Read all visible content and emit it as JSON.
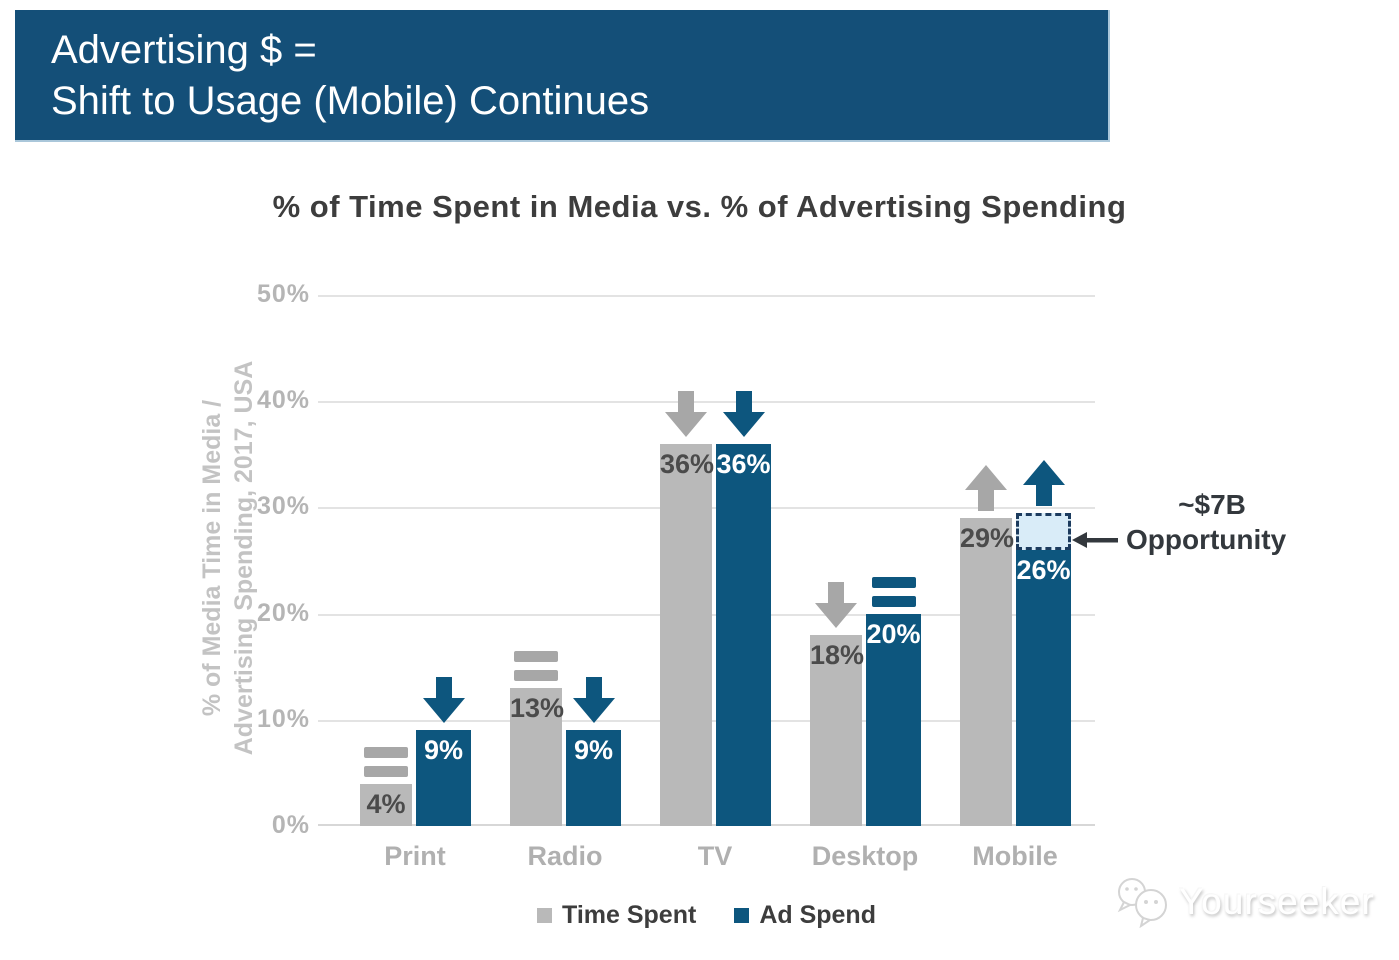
{
  "banner": {
    "line1": "Advertising $ =",
    "line2": "Shift to Usage (Mobile) Continues"
  },
  "chart_data": {
    "type": "bar",
    "title": "% of Time Spent in Media vs. % of Advertising Spending",
    "ylabel_lines": [
      "% of Media Time in Media /",
      "Advertising Spending, 2017, USA"
    ],
    "categories": [
      "Print",
      "Radio",
      "TV",
      "Desktop",
      "Mobile"
    ],
    "series": [
      {
        "name": "Time Spent",
        "color": "#b9b9b9",
        "label_color": "#4b4b4b",
        "icon_color": "#a7a7a7",
        "values": [
          4,
          13,
          36,
          18,
          29
        ],
        "trends": [
          "flat",
          "flat",
          "down",
          "down",
          "up"
        ]
      },
      {
        "name": "Ad Spend",
        "color": "#0d567e",
        "label_color": "#ffffff",
        "icon_color": "#0d567e",
        "values": [
          9,
          9,
          36,
          20,
          26
        ],
        "trends": [
          "down",
          "down",
          "down",
          "flat",
          "up"
        ]
      }
    ],
    "ylim": [
      0,
      50
    ],
    "yticks": [
      50,
      40,
      30,
      20,
      10,
      0
    ],
    "ytick_suffix": "%",
    "grid": true,
    "legend_position": "bottom",
    "annotation": {
      "line1": "~$7B",
      "line2": "Opportunity",
      "category": "Mobile",
      "series": "Ad Spend",
      "gap_top_value": 29.5
    }
  },
  "watermark": {
    "text": "Yourseeker",
    "icon": "wechat-chat-bubbles-icon"
  },
  "colors": {
    "banner_bg": "#144f78",
    "banner_text": "#ffffff",
    "title_text": "#3d3d3d",
    "axis_text": "#b5b5b5",
    "ylabel_text": "#c3c3c3",
    "category_text": "#b0b0b0",
    "gridline": "#e3e3e3",
    "baseline": "#d7d7d7",
    "annotation_text": "#33383d",
    "gap_fill": "#d9ecf8",
    "gap_border": "#1c3b5e",
    "legend_text": "#3d3d3d"
  }
}
